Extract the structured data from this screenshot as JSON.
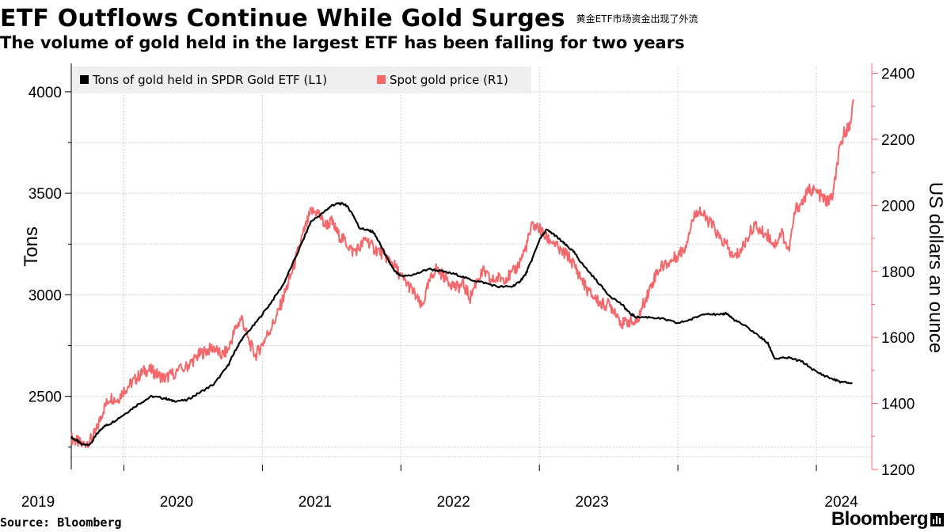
{
  "header": {
    "title": "ETF Outflows Continue While Gold Surges",
    "title_cn": "黄金ETF市场资金出现了外流",
    "subtitle": "The volume of gold held in the largest ETF has been falling for two years"
  },
  "footer": {
    "source": "Source: Bloomberg",
    "brand": "Bloomberg"
  },
  "colors": {
    "left_series": "#000000",
    "right_series": "#f4686b",
    "grid": "#bfbfbf"
  },
  "chart_data": {
    "type": "line",
    "x_unit": "year (decimal)",
    "xlim": [
      2018.62,
      2024.4
    ],
    "x_tick_labels": [
      "2019",
      "2020",
      "2021",
      "2022",
      "2023",
      "2024"
    ],
    "x_tick_positions": [
      2019.0,
      2020.0,
      2021.0,
      2022.0,
      2023.0,
      2024.0
    ],
    "left_axis": {
      "label": "Tons",
      "ylim": [
        2140,
        4140
      ],
      "ticks": [
        2500,
        3000,
        3500,
        4000
      ]
    },
    "right_axis": {
      "label": "US dollars an ounce",
      "ylim": [
        1200,
        2430
      ],
      "ticks": [
        1200,
        1400,
        1600,
        1800,
        2000,
        2200,
        2400
      ]
    },
    "grid": true,
    "legend": {
      "placement": "top-left",
      "entries": [
        "Tons of gold held in SPDR Gold ETF (L1)",
        "Spot gold price (R1)"
      ]
    },
    "series": [
      {
        "name": "Tons of gold held in SPDR Gold ETF (L1)",
        "axis": "left",
        "x": [
          2018.62,
          2018.66,
          2018.7,
          2018.76,
          2018.8,
          2018.85,
          2018.9,
          2019.0,
          2019.1,
          2019.2,
          2019.3,
          2019.35,
          2019.45,
          2019.55,
          2019.65,
          2019.75,
          2019.8,
          2019.85,
          2019.95,
          2020.05,
          2020.15,
          2020.25,
          2020.35,
          2020.45,
          2020.5,
          2020.55,
          2020.6,
          2020.65,
          2020.7,
          2020.75,
          2020.8,
          2020.85,
          2020.9,
          2020.95,
          2021.0,
          2021.1,
          2021.2,
          2021.3,
          2021.4,
          2021.5,
          2021.6,
          2021.7,
          2021.8,
          2021.85,
          2021.9,
          2021.95,
          2022.0,
          2022.05,
          2022.1,
          2022.15,
          2022.2,
          2022.25,
          2022.3,
          2022.4,
          2022.5,
          2022.6,
          2022.65,
          2022.7,
          2022.8,
          2022.9,
          2023.0,
          2023.1,
          2023.2,
          2023.3,
          2023.35,
          2023.4,
          2023.5,
          2023.6,
          2023.65,
          2023.7,
          2023.8,
          2023.9,
          2024.0,
          2024.1,
          2024.18,
          2024.26
        ],
        "y": [
          2298,
          2282,
          2262,
          2265,
          2310,
          2350,
          2365,
          2410,
          2460,
          2500,
          2490,
          2478,
          2480,
          2520,
          2560,
          2650,
          2720,
          2780,
          2860,
          2950,
          3050,
          3200,
          3360,
          3410,
          3440,
          3450,
          3445,
          3400,
          3330,
          3320,
          3310,
          3250,
          3180,
          3120,
          3090,
          3100,
          3128,
          3115,
          3100,
          3075,
          3060,
          3040,
          3040,
          3060,
          3100,
          3180,
          3270,
          3320,
          3300,
          3270,
          3240,
          3210,
          3160,
          3080,
          3000,
          2950,
          2910,
          2890,
          2890,
          2880,
          2860,
          2880,
          2910,
          2900,
          2910,
          2880,
          2840,
          2790,
          2760,
          2685,
          2690,
          2670,
          2620,
          2590,
          2570,
          2565
        ]
      },
      {
        "name": "Spot gold price (R1)",
        "axis": "right",
        "x": [
          2018.62,
          2018.66,
          2018.7,
          2018.76,
          2018.8,
          2018.85,
          2018.9,
          2018.95,
          2019.0,
          2019.05,
          2019.1,
          2019.15,
          2019.2,
          2019.25,
          2019.3,
          2019.35,
          2019.45,
          2019.5,
          2019.55,
          2019.6,
          2019.65,
          2019.7,
          2019.75,
          2019.8,
          2019.85,
          2019.9,
          2019.95,
          2020.0,
          2020.05,
          2020.1,
          2020.15,
          2020.2,
          2020.25,
          2020.3,
          2020.35,
          2020.4,
          2020.45,
          2020.5,
          2020.55,
          2020.6,
          2020.65,
          2020.7,
          2020.75,
          2020.8,
          2020.85,
          2020.9,
          2020.95,
          2021.0,
          2021.05,
          2021.1,
          2021.15,
          2021.2,
          2021.25,
          2021.3,
          2021.35,
          2021.4,
          2021.45,
          2021.5,
          2021.55,
          2021.6,
          2021.65,
          2021.7,
          2021.75,
          2021.8,
          2021.85,
          2021.9,
          2021.95,
          2022.0,
          2022.05,
          2022.1,
          2022.15,
          2022.2,
          2022.25,
          2022.3,
          2022.35,
          2022.4,
          2022.45,
          2022.5,
          2022.55,
          2022.6,
          2022.65,
          2022.7,
          2022.75,
          2022.8,
          2022.85,
          2022.9,
          2022.95,
          2023.0,
          2023.05,
          2023.1,
          2023.15,
          2023.2,
          2023.25,
          2023.3,
          2023.35,
          2023.4,
          2023.45,
          2023.5,
          2023.55,
          2023.6,
          2023.65,
          2023.7,
          2023.75,
          2023.8,
          2023.85,
          2023.9,
          2023.95,
          2024.0,
          2024.05,
          2024.08,
          2024.12,
          2024.16,
          2024.2,
          2024.24,
          2024.27
        ],
        "y": [
          1295,
          1285,
          1275,
          1290,
          1315,
          1380,
          1420,
          1410,
          1440,
          1460,
          1480,
          1500,
          1500,
          1485,
          1475,
          1490,
          1510,
          1530,
          1550,
          1560,
          1570,
          1545,
          1560,
          1620,
          1660,
          1590,
          1545,
          1580,
          1620,
          1660,
          1720,
          1780,
          1850,
          1920,
          1980,
          1980,
          1940,
          1950,
          1910,
          1890,
          1860,
          1870,
          1900,
          1870,
          1860,
          1840,
          1820,
          1785,
          1760,
          1730,
          1690,
          1760,
          1810,
          1790,
          1770,
          1750,
          1760,
          1720,
          1775,
          1800,
          1770,
          1780,
          1780,
          1790,
          1820,
          1870,
          1940,
          1930,
          1900,
          1890,
          1860,
          1850,
          1820,
          1780,
          1740,
          1720,
          1700,
          1700,
          1680,
          1640,
          1650,
          1640,
          1700,
          1750,
          1800,
          1820,
          1830,
          1850,
          1870,
          1950,
          1990,
          1960,
          1940,
          1900,
          1880,
          1840,
          1860,
          1900,
          1940,
          1920,
          1910,
          1880,
          1920,
          1860,
          1990,
          2010,
          2050,
          2040,
          2020,
          2010,
          2030,
          2150,
          2220,
          2240,
          2320
        ]
      }
    ]
  }
}
